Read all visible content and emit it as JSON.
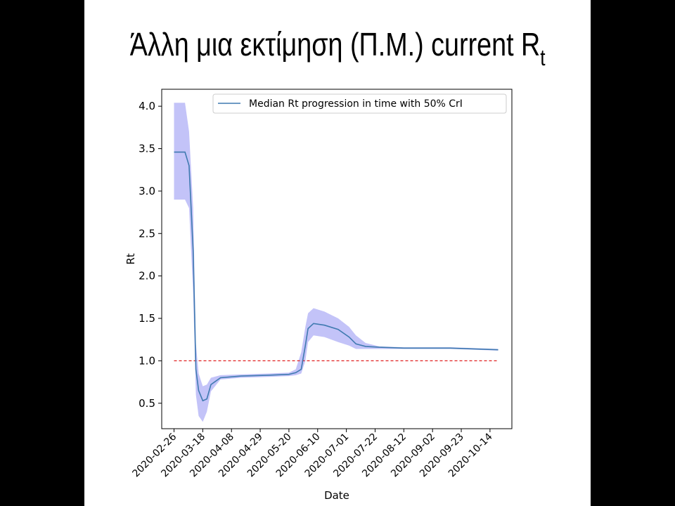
{
  "slide": {
    "title_main": "Άλλη μια εκτίμηση (Π.Μ.) current R",
    "title_sub": "t"
  },
  "colors": {
    "median_line": "#3f7ab0",
    "band_fill": "#b8b8f7",
    "threshold_line": "#e02020",
    "background": "#ffffff",
    "page_background": "#000000"
  },
  "chart_data": {
    "type": "line",
    "xlabel": "Date",
    "ylabel": "Rt",
    "ylim": [
      0.2,
      4.2
    ],
    "xlim": [
      "2020-02-17",
      "2020-10-30"
    ],
    "grid": false,
    "legend_position": "top-right",
    "x_tick_labels": [
      "2020-02-26",
      "2020-03-18",
      "2020-04-08",
      "2020-04-29",
      "2020-05-20",
      "2020-06-10",
      "2020-07-01",
      "2020-07-22",
      "2020-08-12",
      "2020-09-02",
      "2020-09-23",
      "2020-10-14"
    ],
    "y_tick_labels": [
      "0.5",
      "1.0",
      "1.5",
      "2.0",
      "2.5",
      "3.0",
      "3.5",
      "4.0"
    ],
    "series": [
      {
        "name": "Median Rt progression in time with 50% CrI",
        "x": [
          "2020-02-26",
          "2020-03-05",
          "2020-03-08",
          "2020-03-11",
          "2020-03-13",
          "2020-03-15",
          "2020-03-18",
          "2020-03-21",
          "2020-03-24",
          "2020-03-31",
          "2020-04-15",
          "2020-05-05",
          "2020-05-20",
          "2020-05-25",
          "2020-05-29",
          "2020-06-01",
          "2020-06-03",
          "2020-06-07",
          "2020-06-15",
          "2020-06-25",
          "2020-07-03",
          "2020-07-08",
          "2020-07-15",
          "2020-07-25",
          "2020-08-12",
          "2020-09-15",
          "2020-10-20"
        ],
        "median": [
          3.46,
          3.46,
          3.3,
          2.3,
          0.9,
          0.65,
          0.53,
          0.55,
          0.72,
          0.8,
          0.82,
          0.83,
          0.84,
          0.86,
          0.9,
          1.18,
          1.38,
          1.44,
          1.42,
          1.37,
          1.28,
          1.2,
          1.17,
          1.16,
          1.15,
          1.15,
          1.13
        ],
        "lower": [
          2.9,
          2.9,
          2.8,
          1.8,
          0.6,
          0.35,
          0.28,
          0.4,
          0.64,
          0.78,
          0.8,
          0.81,
          0.82,
          0.83,
          0.85,
          1.0,
          1.22,
          1.3,
          1.28,
          1.22,
          1.18,
          1.14,
          1.14,
          1.14,
          1.14,
          1.14,
          1.12
        ],
        "upper": [
          4.04,
          4.04,
          3.7,
          2.8,
          1.2,
          0.85,
          0.7,
          0.72,
          0.8,
          0.83,
          0.84,
          0.85,
          0.86,
          0.9,
          1.1,
          1.4,
          1.56,
          1.62,
          1.58,
          1.5,
          1.4,
          1.3,
          1.21,
          1.17,
          1.16,
          1.16,
          1.14
        ]
      }
    ],
    "reference_line": {
      "y": 1.0,
      "x_start": "2020-02-26",
      "x_end": "2020-10-20",
      "style": "dashed"
    }
  }
}
